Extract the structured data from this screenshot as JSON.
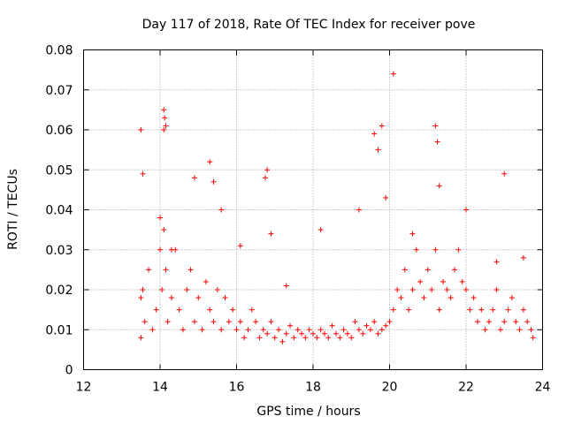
{
  "chart_data": {
    "type": "scatter",
    "title": "Day 117 of 2018, Rate Of TEC Index for receiver pove",
    "xlabel": "GPS time / hours",
    "ylabel": "ROTI / TECUs",
    "xlim": [
      12,
      24
    ],
    "ylim": [
      0,
      0.08
    ],
    "xticks": [
      12,
      14,
      16,
      18,
      20,
      22,
      24
    ],
    "yticks": [
      0,
      0.01,
      0.02,
      0.03,
      0.04,
      0.05,
      0.06,
      0.07,
      0.08
    ],
    "ytick_labels": [
      "0",
      "0.01",
      "0.02",
      "0.03",
      "0.04",
      "0.05",
      "0.06",
      "0.07",
      "0.08"
    ],
    "grid": true,
    "marker": "+",
    "color": "#ff0000",
    "series": [
      {
        "name": "ROTI",
        "x": [
          13.5,
          13.55,
          13.6,
          13.7,
          13.8,
          13.9,
          14.0,
          14.05,
          14.1,
          14.15,
          14.2,
          14.3,
          14.4,
          14.5,
          14.6,
          14.7,
          14.8,
          14.9,
          15.0,
          15.1,
          15.2,
          15.3,
          15.4,
          15.5,
          15.6,
          15.7,
          15.8,
          15.9,
          16.0,
          16.1,
          16.2,
          16.3,
          16.4,
          16.5,
          16.6,
          16.7,
          16.8,
          16.9,
          17.0,
          17.1,
          17.2,
          17.3,
          17.4,
          17.5,
          17.6,
          17.7,
          17.8,
          17.9,
          18.0,
          18.1,
          18.2,
          18.3,
          18.4,
          18.5,
          18.6,
          18.7,
          18.8,
          18.9,
          19.0,
          19.1,
          19.2,
          19.3,
          19.4,
          19.5,
          19.6,
          19.7,
          19.8,
          19.9,
          20.0,
          20.1,
          20.2,
          20.3,
          20.4,
          20.5,
          20.6,
          20.7,
          20.8,
          20.9,
          21.0,
          21.1,
          21.2,
          21.3,
          21.4,
          21.5,
          21.6,
          21.7,
          21.8,
          21.9,
          22.0,
          22.1,
          22.2,
          22.3,
          22.4,
          22.5,
          22.6,
          22.7,
          22.8,
          22.9,
          23.0,
          23.1,
          23.2,
          23.3,
          23.4,
          23.5,
          23.6,
          23.7,
          23.75,
          13.5,
          13.55,
          14.1,
          14.12,
          14.15,
          19.8,
          20.1,
          21.2,
          21.25,
          15.3,
          15.4,
          16.8,
          16.75,
          19.6,
          19.7,
          23.0,
          13.5,
          14.0,
          14.1,
          14.3,
          14.9,
          15.6,
          16.1,
          16.9,
          17.3,
          18.2,
          19.2,
          19.9,
          20.6,
          21.3,
          22.0,
          22.8,
          23.5
        ],
        "y": [
          0.008,
          0.02,
          0.012,
          0.025,
          0.01,
          0.015,
          0.03,
          0.02,
          0.035,
          0.025,
          0.012,
          0.018,
          0.03,
          0.015,
          0.01,
          0.02,
          0.025,
          0.012,
          0.018,
          0.01,
          0.022,
          0.015,
          0.012,
          0.02,
          0.01,
          0.018,
          0.012,
          0.015,
          0.01,
          0.012,
          0.008,
          0.01,
          0.015,
          0.012,
          0.008,
          0.01,
          0.009,
          0.012,
          0.008,
          0.01,
          0.007,
          0.009,
          0.011,
          0.008,
          0.01,
          0.009,
          0.008,
          0.01,
          0.009,
          0.008,
          0.01,
          0.009,
          0.008,
          0.011,
          0.009,
          0.008,
          0.01,
          0.009,
          0.008,
          0.012,
          0.01,
          0.009,
          0.011,
          0.01,
          0.012,
          0.009,
          0.01,
          0.011,
          0.012,
          0.015,
          0.02,
          0.018,
          0.025,
          0.015,
          0.02,
          0.03,
          0.022,
          0.018,
          0.025,
          0.02,
          0.03,
          0.015,
          0.022,
          0.02,
          0.018,
          0.025,
          0.03,
          0.022,
          0.02,
          0.015,
          0.018,
          0.012,
          0.015,
          0.01,
          0.012,
          0.015,
          0.02,
          0.01,
          0.012,
          0.015,
          0.018,
          0.012,
          0.01,
          0.015,
          0.012,
          0.01,
          0.008,
          0.06,
          0.049,
          0.065,
          0.063,
          0.061,
          0.061,
          0.074,
          0.061,
          0.057,
          0.052,
          0.047,
          0.05,
          0.048,
          0.059,
          0.055,
          0.049,
          0.018,
          0.038,
          0.06,
          0.03,
          0.048,
          0.04,
          0.031,
          0.034,
          0.021,
          0.035,
          0.04,
          0.043,
          0.034,
          0.046,
          0.04,
          0.027,
          0.028
        ]
      }
    ]
  }
}
